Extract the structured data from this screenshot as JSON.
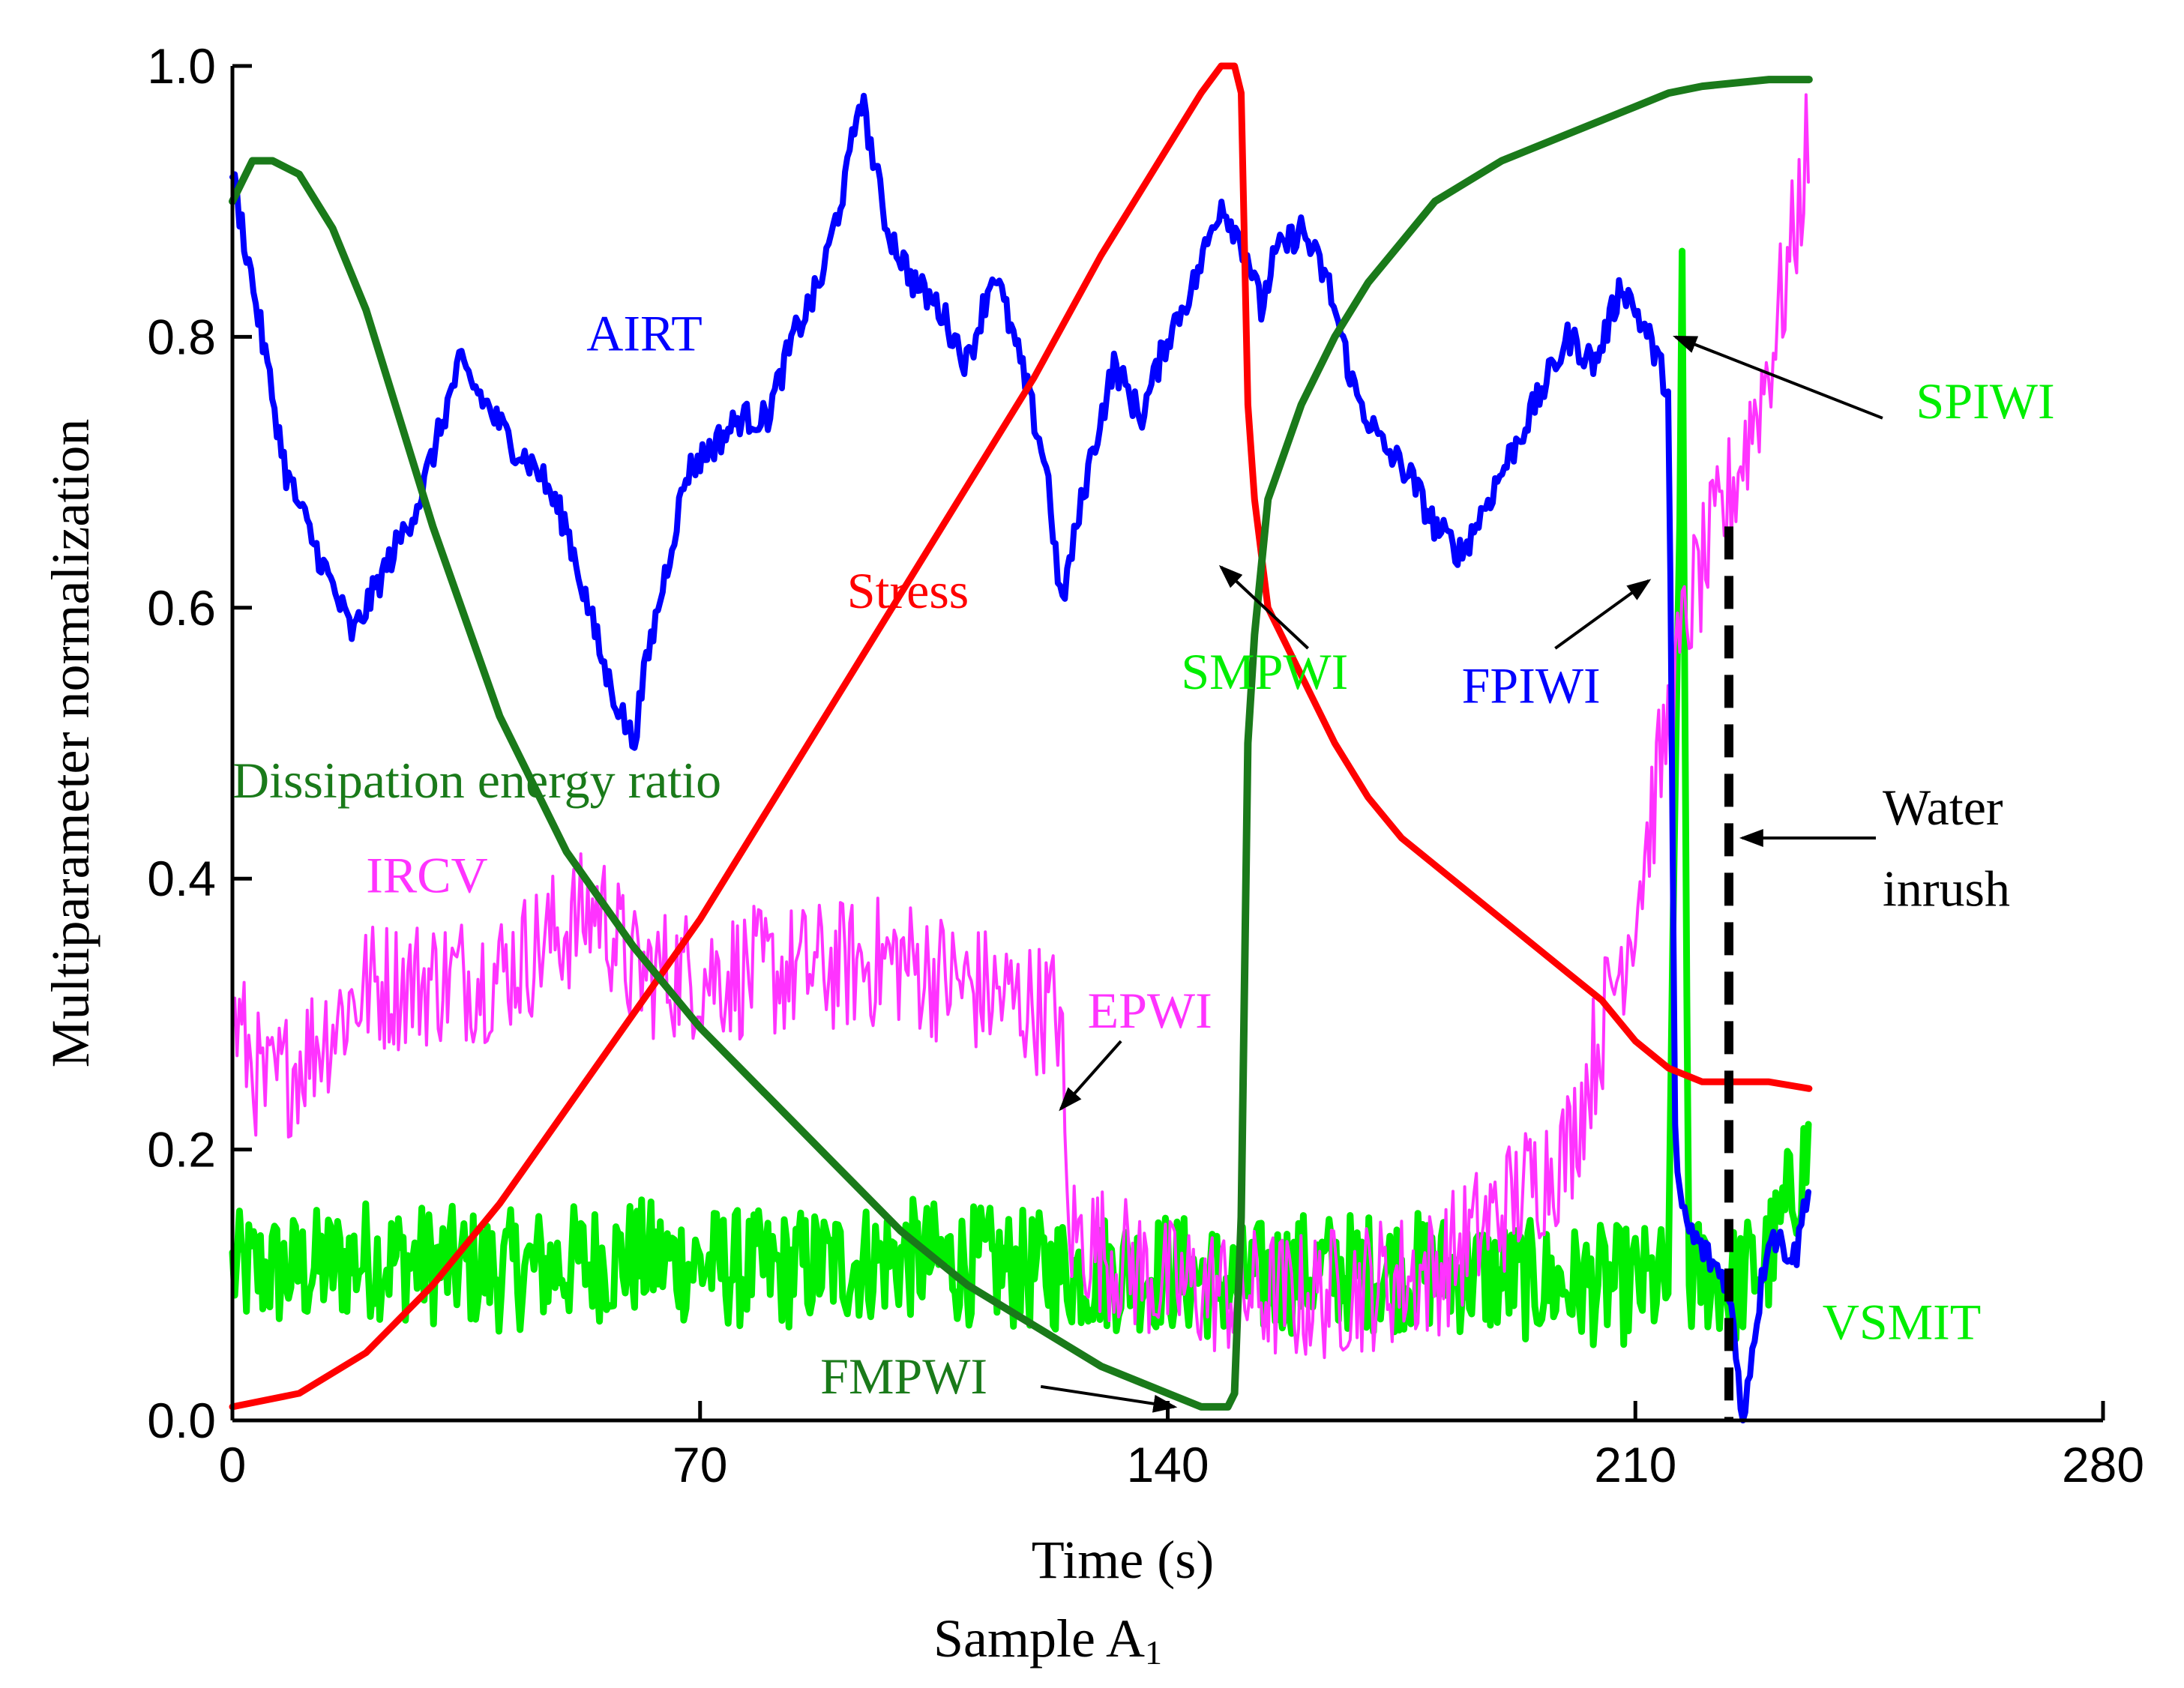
{
  "chart_data": {
    "type": "line",
    "title": "",
    "xlabel": "Time (s)",
    "ylabel": "Multiparameter normalization",
    "caption": {
      "text": "Sample A",
      "subscript": "1"
    },
    "xlim": [
      0,
      280
    ],
    "ylim": [
      0,
      1
    ],
    "xticks": [
      0,
      70,
      140,
      210,
      280
    ],
    "xtick_labels": [
      "0",
      "70",
      "140",
      "210",
      "280"
    ],
    "yticks": [
      0,
      0.2,
      0.4,
      0.6,
      0.8,
      1.0
    ],
    "ytick_labels": [
      "0.0",
      "0.2",
      "0.4",
      "0.6",
      "0.8",
      "1.0"
    ],
    "grid": false,
    "series": [
      {
        "name": "VSMIT",
        "color": "#00ee00",
        "width": 9,
        "noise": 0.045,
        "x": [
          0,
          10,
          20,
          40,
          60,
          80,
          100,
          120,
          140,
          150,
          160,
          180,
          200,
          210,
          215,
          217,
          218,
          220,
          225,
          230,
          236
        ],
        "y": [
          0.11,
          0.11,
          0.12,
          0.11,
          0.12,
          0.11,
          0.12,
          0.11,
          0.11,
          0.1,
          0.11,
          0.11,
          0.1,
          0.1,
          0.1,
          0.82,
          0.1,
          0.11,
          0.1,
          0.12,
          0.2
        ]
      },
      {
        "name": "IRCV",
        "color": "#ff33ff",
        "width": 4,
        "noise": 0.05,
        "x": [
          0,
          5,
          20,
          40,
          55,
          60,
          80,
          100,
          110,
          124,
          125,
          140,
          160,
          180,
          200,
          210,
          218,
          224,
          230,
          234,
          236
        ],
        "y": [
          0.3,
          0.24,
          0.32,
          0.33,
          0.38,
          0.33,
          0.33,
          0.34,
          0.32,
          0.3,
          0.14,
          0.1,
          0.09,
          0.11,
          0.2,
          0.38,
          0.6,
          0.68,
          0.78,
          0.88,
          0.95
        ]
      },
      {
        "name": "AIRT",
        "color": "#0000ff",
        "width": 8,
        "noise": 0.012,
        "x": [
          0,
          3,
          8,
          12,
          18,
          22,
          28,
          34,
          38,
          42,
          46,
          50,
          56,
          60,
          62,
          68,
          72,
          76,
          80,
          84,
          88,
          92,
          94,
          98,
          102,
          106,
          110,
          114,
          118,
          122,
          124,
          128,
          132,
          136,
          140,
          144,
          148,
          152,
          154,
          156,
          160,
          164,
          168,
          172,
          176,
          180,
          184,
          188,
          192,
          196,
          200,
          204,
          208,
          212,
          215,
          216,
          218,
          224,
          226,
          230,
          234,
          236
        ],
        "y": [
          0.92,
          0.84,
          0.7,
          0.65,
          0.58,
          0.62,
          0.68,
          0.78,
          0.75,
          0.72,
          0.7,
          0.66,
          0.55,
          0.5,
          0.56,
          0.7,
          0.72,
          0.74,
          0.74,
          0.8,
          0.84,
          0.92,
          0.98,
          0.88,
          0.84,
          0.82,
          0.78,
          0.85,
          0.78,
          0.7,
          0.6,
          0.7,
          0.78,
          0.74,
          0.8,
          0.84,
          0.9,
          0.86,
          0.82,
          0.86,
          0.88,
          0.84,
          0.76,
          0.72,
          0.7,
          0.66,
          0.64,
          0.68,
          0.72,
          0.76,
          0.8,
          0.78,
          0.84,
          0.8,
          0.76,
          0.18,
          0.14,
          0.1,
          0.0,
          0.14,
          0.12,
          0.18
        ]
      },
      {
        "name": "Stress",
        "color": "#ff0000",
        "width": 9,
        "noise": 0,
        "x": [
          0,
          10,
          20,
          30,
          40,
          50,
          60,
          70,
          80,
          90,
          100,
          110,
          120,
          130,
          140,
          145,
          148,
          150,
          151,
          152,
          153,
          155,
          160,
          165,
          170,
          175,
          180,
          190,
          200,
          205,
          210,
          215,
          220,
          230,
          236
        ],
        "y": [
          0.01,
          0.02,
          0.05,
          0.1,
          0.16,
          0.23,
          0.3,
          0.37,
          0.45,
          0.53,
          0.61,
          0.69,
          0.77,
          0.86,
          0.94,
          0.98,
          1.0,
          1.0,
          0.98,
          0.75,
          0.68,
          0.6,
          0.55,
          0.5,
          0.46,
          0.43,
          0.41,
          0.37,
          0.33,
          0.31,
          0.28,
          0.26,
          0.25,
          0.25,
          0.245
        ]
      },
      {
        "name": "Dissipation energy ratio",
        "color": "#1a7a1a",
        "width": 10,
        "noise": 0,
        "x": [
          0,
          3,
          6,
          10,
          15,
          20,
          25,
          30,
          40,
          50,
          60,
          70,
          80,
          90,
          100,
          110,
          120,
          130,
          140,
          145,
          148,
          149,
          150,
          151,
          152,
          153,
          155,
          160,
          165,
          170,
          175,
          180,
          190,
          200,
          210,
          215,
          220,
          230,
          236
        ],
        "y": [
          0.9,
          0.93,
          0.93,
          0.92,
          0.88,
          0.82,
          0.74,
          0.66,
          0.52,
          0.42,
          0.35,
          0.29,
          0.24,
          0.19,
          0.14,
          0.1,
          0.07,
          0.04,
          0.02,
          0.01,
          0.01,
          0.01,
          0.02,
          0.15,
          0.5,
          0.58,
          0.68,
          0.75,
          0.8,
          0.84,
          0.87,
          0.9,
          0.93,
          0.95,
          0.97,
          0.98,
          0.985,
          0.99,
          0.99
        ]
      }
    ],
    "water_inrush_x": 224,
    "labels": [
      {
        "text": "AIRT",
        "x": 53,
        "y": 0.79,
        "color": "#0000ff"
      },
      {
        "text": "Stress",
        "x": 92,
        "y": 0.6,
        "color": "#ff0000"
      },
      {
        "text": "SMPWI",
        "x": 142,
        "y": 0.54,
        "color": "#00ee00"
      },
      {
        "text": "FPIWI",
        "x": 184,
        "y": 0.53,
        "color": "#0000ff"
      },
      {
        "text": "SPIWI",
        "x": 252,
        "y": 0.74,
        "color": "#00ee00"
      },
      {
        "text": "Dissipation energy ratio",
        "x": 0,
        "y": 0.46,
        "color": "#1a7a1a"
      },
      {
        "text": "IRCV",
        "x": 20,
        "y": 0.39,
        "color": "#ff33ff"
      },
      {
        "text": "EPWI",
        "x": 128,
        "y": 0.29,
        "color": "#ff33ff"
      },
      {
        "text": "FMPWI",
        "x": 88,
        "y": 0.02,
        "color": "#1a7a1a"
      },
      {
        "text": "VSMIT",
        "x": 238,
        "y": 0.06,
        "color": "#00ee00"
      },
      {
        "text": "Water",
        "x": 247,
        "y": 0.44,
        "color": "#000000"
      },
      {
        "text": "inrush",
        "x": 247,
        "y": 0.38,
        "color": "#000000"
      }
    ],
    "arrows": [
      {
        "name": "smpwi",
        "from": [
          161,
          0.57
        ],
        "to": [
          148,
          0.63
        ]
      },
      {
        "name": "fpiwi",
        "from": [
          198,
          0.57
        ],
        "to": [
          212,
          0.62
        ]
      },
      {
        "name": "spiwi",
        "from": [
          247,
          0.74
        ],
        "to": [
          216,
          0.8
        ]
      },
      {
        "name": "epwi",
        "from": [
          133,
          0.28
        ],
        "to": [
          124,
          0.23
        ]
      },
      {
        "name": "fmpwi",
        "from": [
          121,
          0.025
        ],
        "to": [
          141,
          0.01
        ]
      },
      {
        "name": "water-inrush",
        "from": [
          246,
          0.43
        ],
        "to": [
          226,
          0.43
        ]
      }
    ]
  }
}
